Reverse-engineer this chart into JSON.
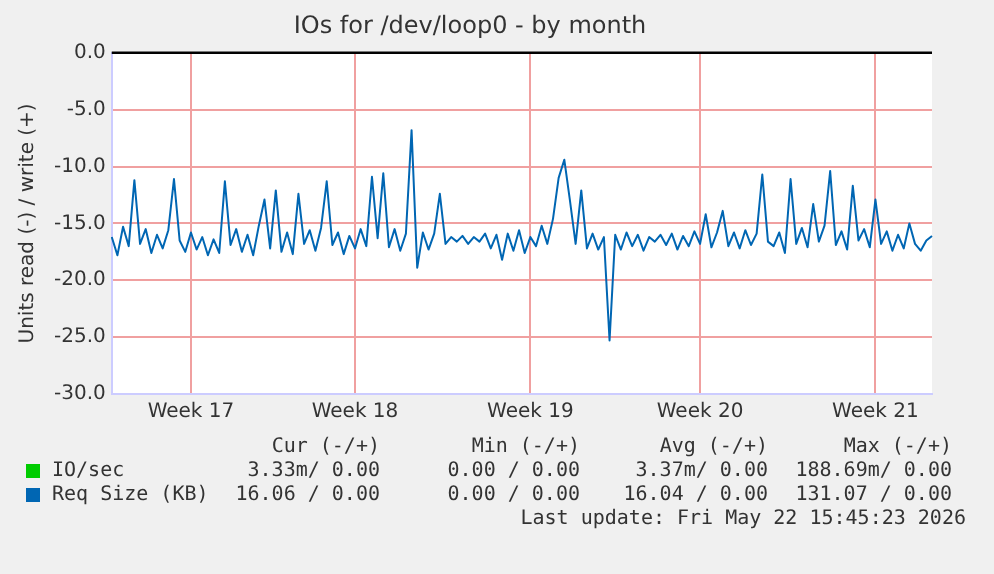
{
  "chart_data": {
    "type": "line",
    "title": "IOs for /dev/loop0 - by month",
    "ylabel": "Units read (-) / write (+)",
    "series": [
      {
        "name": "IO/sec",
        "color": "#00cc00",
        "values": [
          null,
          null,
          null,
          null,
          null,
          null,
          null,
          null,
          null,
          null,
          null,
          null,
          null,
          null,
          null,
          null,
          null,
          null,
          null,
          null,
          null,
          null,
          null,
          null,
          null,
          null,
          null,
          null,
          null,
          null,
          null,
          null,
          null,
          null,
          null,
          null,
          null,
          null,
          null,
          null,
          null,
          null,
          null,
          null,
          null,
          null,
          null,
          null,
          null,
          null,
          null,
          null,
          null,
          null,
          null,
          null,
          null,
          null,
          null,
          null,
          null,
          null,
          null,
          null,
          null,
          null,
          null,
          null,
          null,
          null,
          null,
          null,
          null,
          null,
          null,
          null,
          null,
          null,
          null,
          null,
          null,
          null,
          null,
          null,
          null,
          null,
          null,
          null,
          null,
          null,
          null,
          null,
          null,
          null,
          null,
          null,
          null,
          null,
          null,
          null,
          null,
          null,
          null,
          null,
          null,
          null,
          null,
          null,
          null,
          null,
          null,
          null,
          null,
          null,
          null,
          null,
          null,
          null,
          null,
          null,
          null,
          null,
          null,
          null,
          null,
          null,
          null,
          null,
          null,
          null,
          null,
          null,
          null,
          null,
          null,
          null,
          null,
          null,
          null,
          null,
          null,
          null,
          null,
          null,
          null,
          null
        ]
      },
      {
        "name": "Req Size (KB)",
        "color": "#0066b3",
        "values": [
          -16.2,
          -17.8,
          -15.3,
          -17.0,
          -11.2,
          -16.8,
          -15.5,
          -17.6,
          -16.0,
          -17.2,
          -15.6,
          -11.1,
          -16.5,
          -17.5,
          -15.8,
          -17.3,
          -16.2,
          -17.8,
          -16.4,
          -17.6,
          -11.3,
          -16.9,
          -15.5,
          -17.5,
          -16.0,
          -17.8,
          -15.2,
          -12.9,
          -17.2,
          -12.1,
          -17.5,
          -15.8,
          -17.7,
          -12.4,
          -16.8,
          -15.6,
          -17.4,
          -15.4,
          -11.3,
          -16.9,
          -15.8,
          -17.7,
          -16.1,
          -17.2,
          -15.5,
          -17.0,
          -10.9,
          -16.3,
          -10.6,
          -17.1,
          -15.5,
          -17.4,
          -15.9,
          -6.8,
          -18.9,
          -15.8,
          -17.3,
          -15.9,
          -12.4,
          -16.8,
          -16.2,
          -16.6,
          -16.1,
          -16.8,
          -16.2,
          -16.6,
          -15.9,
          -17.2,
          -16.0,
          -18.2,
          -15.9,
          -17.4,
          -15.6,
          -17.6,
          -16.2,
          -17.0,
          -15.2,
          -16.8,
          -14.6,
          -11.0,
          -9.4,
          -13.0,
          -16.8,
          -12.1,
          -17.2,
          -15.9,
          -17.3,
          -16.2,
          -25.3,
          -16.0,
          -17.3,
          -15.8,
          -17.0,
          -16.0,
          -17.4,
          -16.2,
          -16.6,
          -16.0,
          -16.9,
          -15.9,
          -17.3,
          -16.1,
          -17.0,
          -15.7,
          -16.8,
          -14.2,
          -17.1,
          -15.8,
          -13.9,
          -17.0,
          -15.8,
          -17.2,
          -15.6,
          -16.9,
          -15.9,
          -10.7,
          -16.6,
          -17.0,
          -15.8,
          -17.6,
          -11.1,
          -16.8,
          -15.4,
          -17.1,
          -13.3,
          -16.6,
          -15.2,
          -10.4,
          -16.9,
          -15.7,
          -17.3,
          -11.7,
          -16.5,
          -15.5,
          -17.1,
          -12.9,
          -16.8,
          -15.7,
          -17.4,
          -16.0,
          -17.2,
          -15.0,
          -16.8,
          -17.4,
          -16.5,
          -16.1
        ]
      }
    ],
    "categories": [
      null,
      null,
      null,
      null,
      null,
      null,
      null,
      null,
      null,
      null,
      null,
      null,
      null,
      null,
      "Week 17",
      null,
      null,
      null,
      null,
      null,
      null,
      null,
      null,
      null,
      null,
      null,
      null,
      null,
      null,
      null,
      null,
      null,
      null,
      null,
      null,
      null,
      null,
      null,
      null,
      null,
      null,
      null,
      null,
      "Week 18",
      null,
      null,
      null,
      null,
      null,
      null,
      null,
      null,
      null,
      null,
      null,
      null,
      null,
      null,
      null,
      null,
      null,
      null,
      null,
      null,
      null,
      null,
      null,
      null,
      null,
      null,
      null,
      null,
      null,
      null,
      "Week 19",
      null,
      null,
      null,
      null,
      null,
      null,
      null,
      null,
      null,
      null,
      null,
      null,
      null,
      null,
      null,
      null,
      null,
      null,
      null,
      null,
      null,
      null,
      null,
      null,
      null,
      null,
      null,
      null,
      null,
      "Week 20",
      null,
      null,
      null,
      null,
      null,
      null,
      null,
      null,
      null,
      null,
      null,
      null,
      null,
      null,
      null,
      null,
      null,
      null,
      null,
      null,
      null,
      null,
      null,
      null,
      null,
      null,
      null,
      null,
      null,
      null,
      "Week 21",
      null,
      null,
      null,
      null,
      null,
      null,
      null,
      null,
      null,
      null
    ],
    "ylim": [
      -30,
      0
    ],
    "yticks": [
      {
        "value": -30,
        "label": "-30.0"
      },
      {
        "value": -25,
        "label": "-25.0"
      },
      {
        "value": -20,
        "label": "-20.0"
      },
      {
        "value": -15,
        "label": "-15.0"
      },
      {
        "value": -10,
        "label": "-10.0"
      },
      {
        "value": -5,
        "label": "-5.0"
      },
      {
        "value": 0,
        "label": "0.0"
      }
    ],
    "ref_lines": [
      {
        "axis": "y",
        "value": 0,
        "color": "#000000"
      }
    ],
    "grid": true,
    "legend": "bottom",
    "marker": "none",
    "line_style": "solid",
    "annotations": [
      "Cur (-/+)",
      "Min (-/+)",
      "Avg (-/+)",
      "Max (-/+)",
      "3.33m/ 0.00",
      "0.00 / 0.00",
      "3.37m/ 0.00",
      "188.69m/ 0.00",
      "16.06 / 0.00",
      "0.00 / 0.00",
      "16.04 / 0.00",
      "131.07 / 0.00",
      "Last update: Fri May 22 15:45:23 2026"
    ]
  }
}
